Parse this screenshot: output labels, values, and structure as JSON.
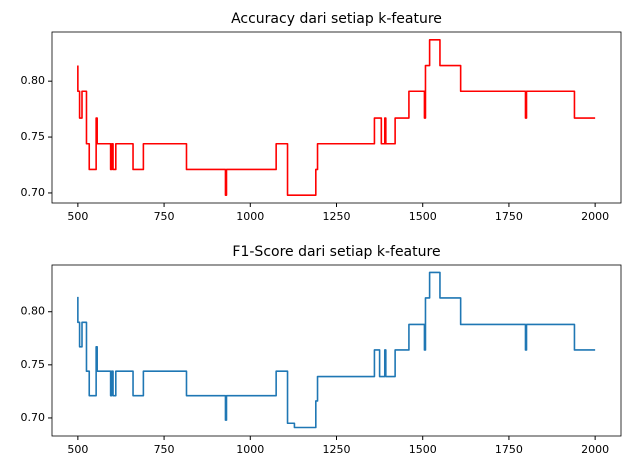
{
  "chart_data": [
    {
      "type": "line",
      "title": "Accuracy dari setiap k-feature",
      "color": "#ff0000",
      "x": [
        500,
        500,
        505,
        505,
        512,
        512,
        525,
        525,
        533,
        533,
        553,
        553,
        556,
        556,
        595,
        595,
        598,
        598,
        602,
        602,
        610,
        610,
        660,
        660,
        690,
        690,
        815,
        815,
        928,
        928,
        931,
        931,
        1075,
        1075,
        1108,
        1108,
        1190,
        1190,
        1195,
        1195,
        1360,
        1360,
        1380,
        1380,
        1390,
        1390,
        1393,
        1393,
        1420,
        1420,
        1460,
        1460,
        1505,
        1505,
        1508,
        1508,
        1520,
        1520,
        1550,
        1550,
        1610,
        1610,
        1798,
        1798,
        1801,
        1801,
        1940,
        1940,
        2000
      ],
      "values": [
        0.814,
        0.791,
        0.791,
        0.767,
        0.767,
        0.791,
        0.791,
        0.744,
        0.744,
        0.721,
        0.721,
        0.767,
        0.767,
        0.744,
        0.744,
        0.721,
        0.721,
        0.744,
        0.744,
        0.721,
        0.721,
        0.744,
        0.744,
        0.721,
        0.721,
        0.744,
        0.744,
        0.721,
        0.721,
        0.698,
        0.698,
        0.721,
        0.721,
        0.744,
        0.744,
        0.698,
        0.698,
        0.721,
        0.721,
        0.744,
        0.744,
        0.767,
        0.767,
        0.744,
        0.744,
        0.767,
        0.767,
        0.744,
        0.744,
        0.767,
        0.767,
        0.791,
        0.791,
        0.767,
        0.767,
        0.814,
        0.814,
        0.837,
        0.837,
        0.814,
        0.814,
        0.791,
        0.791,
        0.767,
        0.767,
        0.791,
        0.791,
        0.767,
        0.767
      ],
      "xlim": [
        425,
        2075
      ],
      "ylim": [
        0.691,
        0.844
      ],
      "xticks": [
        500,
        750,
        1000,
        1250,
        1500,
        1750,
        2000
      ],
      "yticks": [
        {
          "value": 0.7,
          "label": "0.70"
        },
        {
          "value": 0.75,
          "label": "0.75"
        },
        {
          "value": 0.8,
          "label": "0.80"
        }
      ]
    },
    {
      "type": "line",
      "title": "F1-Score dari setiap k-feature",
      "color": "#1f77b4",
      "x": [
        500,
        500,
        505,
        505,
        512,
        512,
        525,
        525,
        533,
        533,
        553,
        553,
        556,
        556,
        595,
        595,
        598,
        598,
        602,
        602,
        610,
        610,
        660,
        660,
        690,
        690,
        815,
        815,
        928,
        928,
        931,
        931,
        1075,
        1075,
        1108,
        1108,
        1128,
        1128,
        1190,
        1190,
        1195,
        1195,
        1360,
        1360,
        1375,
        1375,
        1390,
        1390,
        1393,
        1393,
        1420,
        1420,
        1460,
        1460,
        1505,
        1505,
        1508,
        1508,
        1520,
        1520,
        1550,
        1550,
        1610,
        1610,
        1798,
        1798,
        1801,
        1801,
        1940,
        1940,
        2000
      ],
      "values": [
        0.814,
        0.79,
        0.79,
        0.767,
        0.767,
        0.79,
        0.79,
        0.744,
        0.744,
        0.721,
        0.721,
        0.767,
        0.767,
        0.744,
        0.744,
        0.721,
        0.721,
        0.744,
        0.744,
        0.721,
        0.721,
        0.744,
        0.744,
        0.721,
        0.721,
        0.744,
        0.744,
        0.721,
        0.721,
        0.698,
        0.698,
        0.721,
        0.721,
        0.744,
        0.744,
        0.695,
        0.695,
        0.691,
        0.691,
        0.716,
        0.716,
        0.739,
        0.739,
        0.764,
        0.764,
        0.739,
        0.739,
        0.764,
        0.764,
        0.739,
        0.739,
        0.764,
        0.764,
        0.788,
        0.788,
        0.764,
        0.764,
        0.813,
        0.813,
        0.837,
        0.837,
        0.813,
        0.813,
        0.788,
        0.788,
        0.764,
        0.764,
        0.788,
        0.788,
        0.764,
        0.764
      ],
      "xlim": [
        425,
        2075
      ],
      "ylim": [
        0.683,
        0.844
      ],
      "xticks": [
        500,
        750,
        1000,
        1250,
        1500,
        1750,
        2000
      ],
      "yticks": [
        {
          "value": 0.7,
          "label": "0.70"
        },
        {
          "value": 0.75,
          "label": "0.75"
        },
        {
          "value": 0.8,
          "label": "0.80"
        }
      ]
    }
  ]
}
